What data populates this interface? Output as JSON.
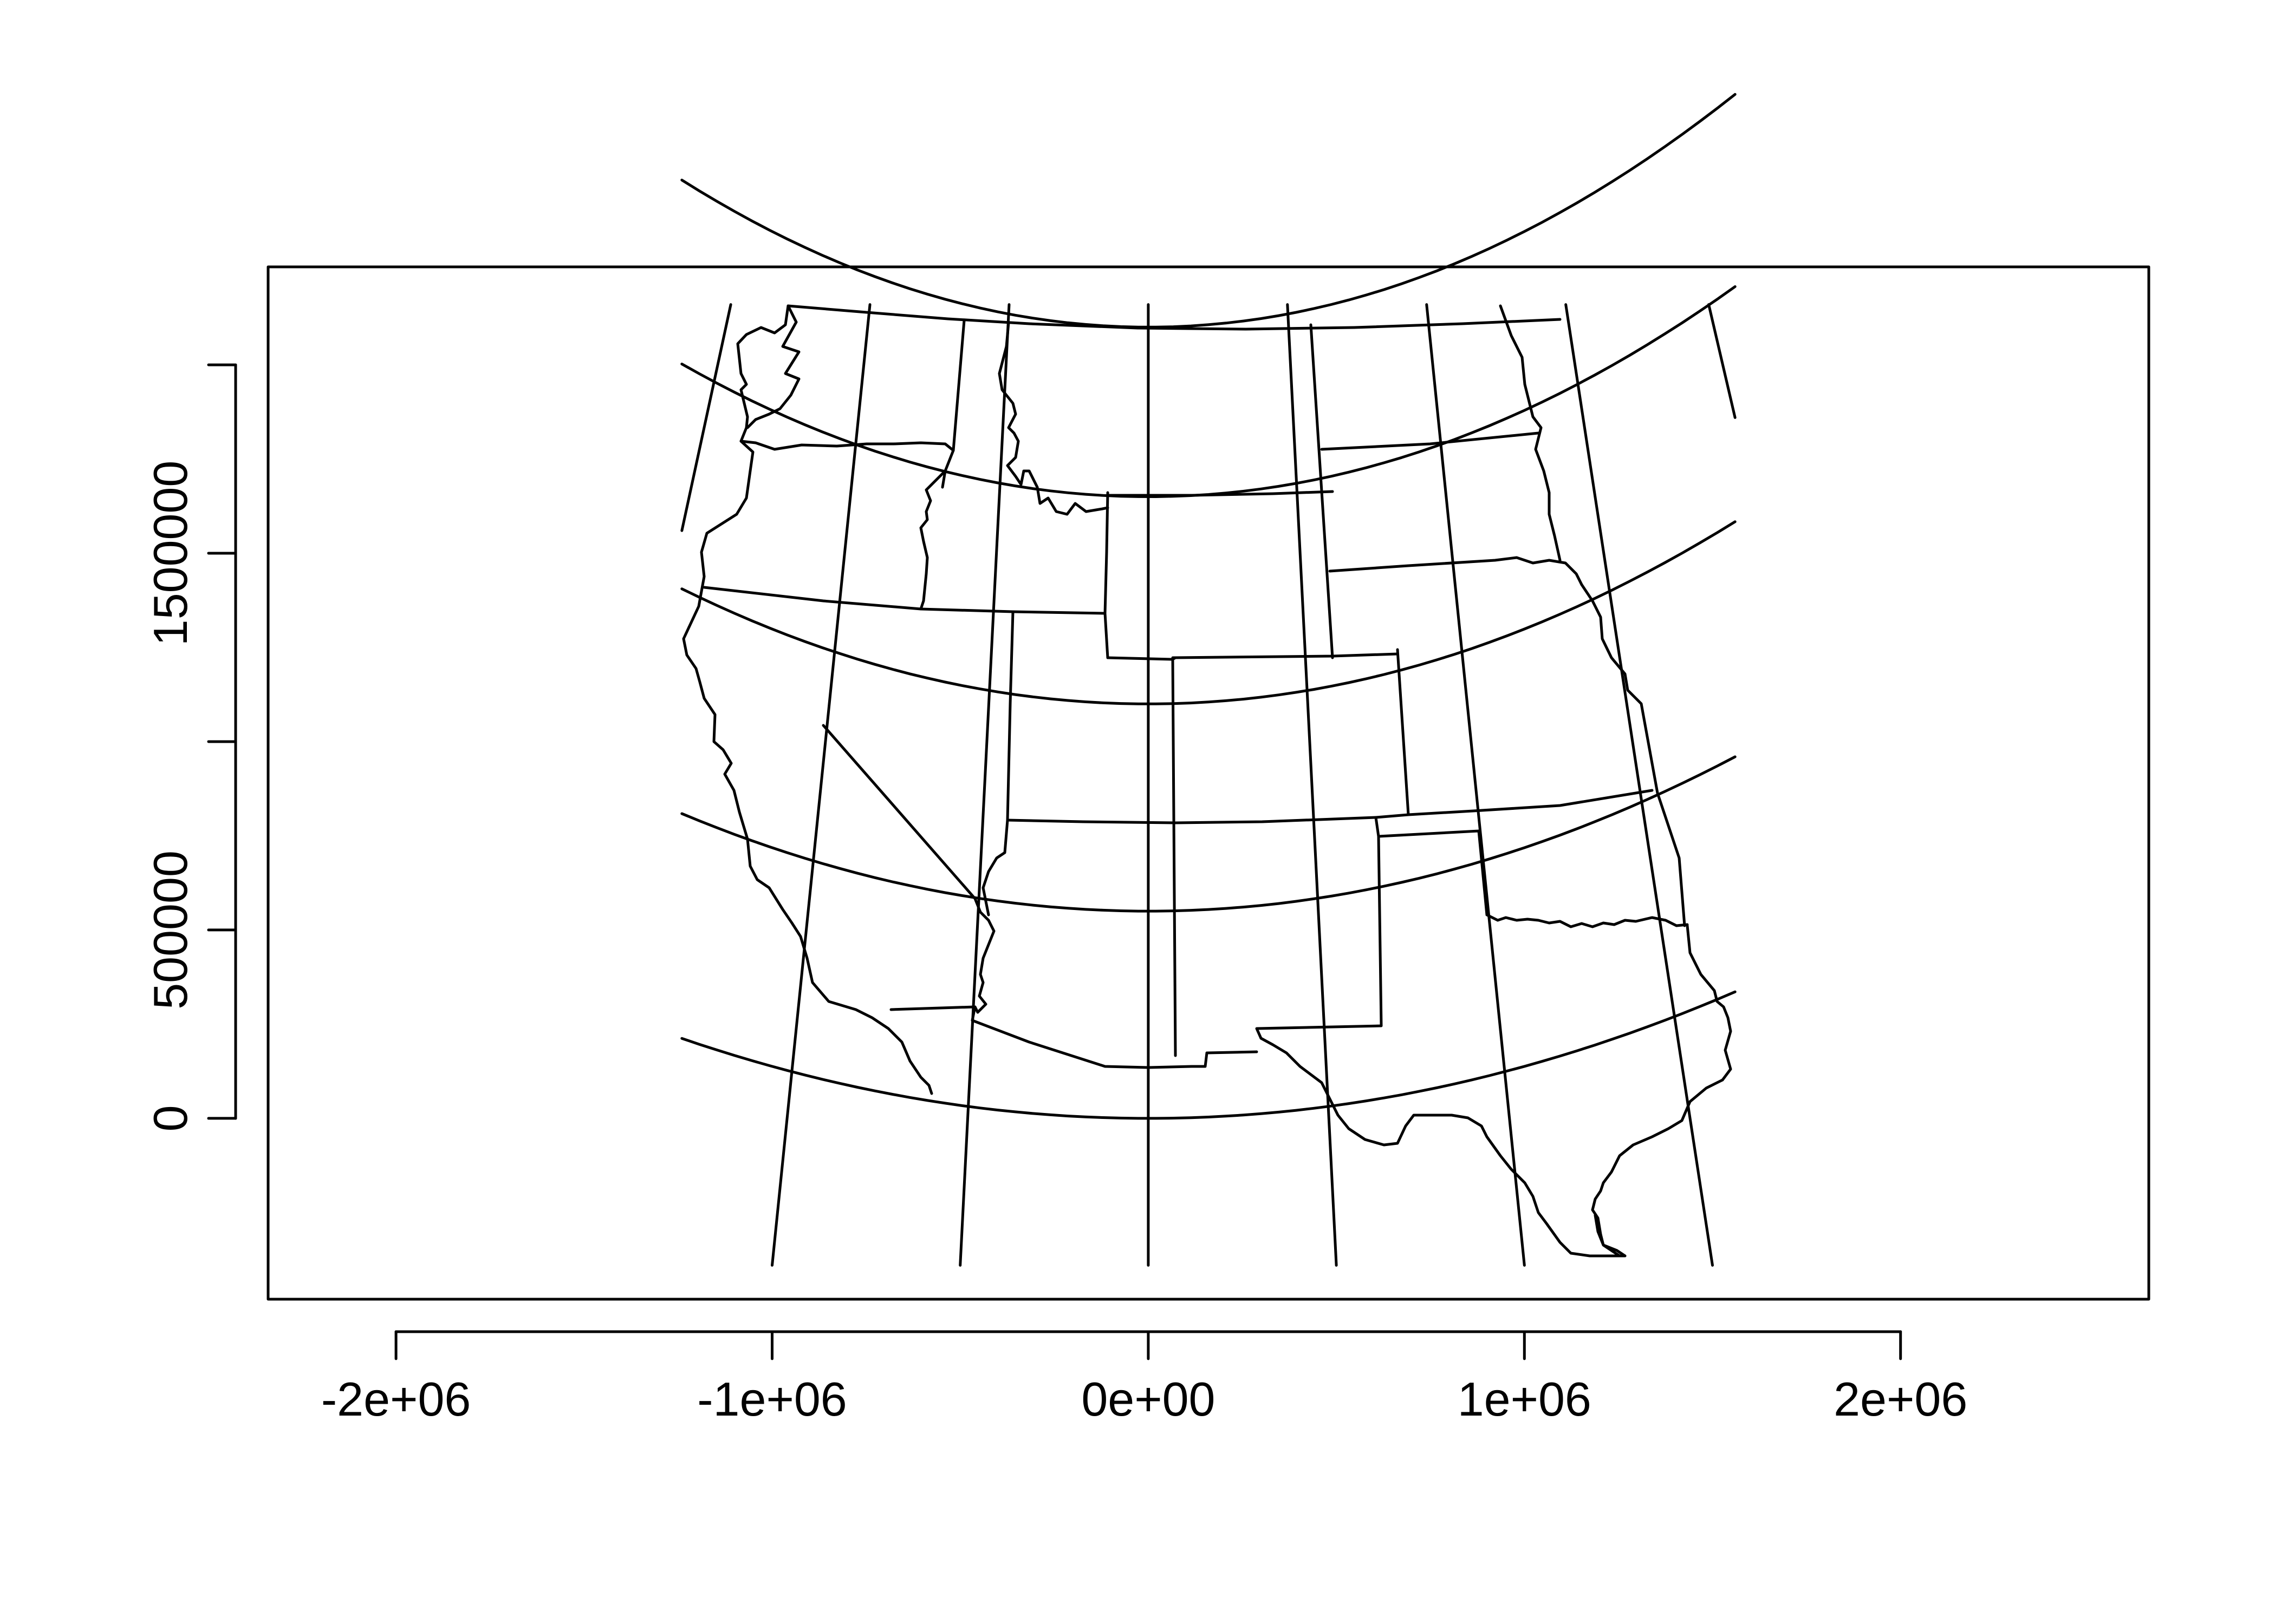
{
  "chart_data": {
    "type": "map",
    "title": "",
    "xlabel": "",
    "ylabel": "",
    "xlim": [
      -2340000,
      2660000
    ],
    "ylim": [
      -480000,
      2260000
    ],
    "x_ticks": [
      -2000000,
      -1000000,
      0,
      1000000,
      2000000
    ],
    "x_tick_labels": [
      "-2e+06",
      "-1e+06",
      "0e+00",
      "1e+06",
      "2e+06"
    ],
    "y_ticks": [
      0,
      500000,
      1000000,
      1500000,
      2000000
    ],
    "y_tick_labels": [
      "0",
      "500000",
      "",
      "1500000",
      ""
    ],
    "graticule": {
      "meridians_x_at_bottom": [
        -1000000,
        -500000,
        0,
        500000,
        1000000,
        1500000
      ],
      "parallels_y_at_center": [
        0,
        550000,
        1100000,
        1650000,
        2100000
      ]
    },
    "stroke_color": "#000000",
    "background_color": "#ffffff",
    "region": "Western United States state boundaries (Albers-like conic projection)"
  }
}
